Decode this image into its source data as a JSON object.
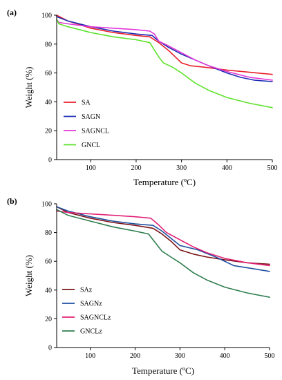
{
  "chart_data": [
    {
      "type": "line",
      "panel_label": "(a)",
      "xlabel": "Temperature (ºC)",
      "ylabel": "Weight (%)",
      "xlim": [
        25,
        500
      ],
      "ylim": [
        0,
        100
      ],
      "xticks": [
        100,
        200,
        300,
        400,
        500
      ],
      "yticks": [
        0,
        20,
        40,
        60,
        80,
        100
      ],
      "grid": false,
      "legend_position": "bottom-left",
      "series": [
        {
          "name": "SA",
          "color": "#e8202a",
          "x": [
            25,
            50,
            100,
            150,
            200,
            230,
            250,
            270,
            290,
            300,
            320,
            350,
            400,
            450,
            500
          ],
          "y": [
            100,
            96,
            91,
            88,
            86,
            85,
            81,
            76,
            70,
            67,
            65,
            64,
            62,
            60.5,
            59
          ]
        },
        {
          "name": "SAGN",
          "color": "#1d2bb5",
          "x": [
            25,
            50,
            100,
            150,
            200,
            235,
            250,
            270,
            300,
            330,
            360,
            400,
            430,
            460,
            500
          ],
          "y": [
            99,
            96,
            92,
            89,
            87,
            86,
            82,
            78,
            73,
            69,
            65,
            60,
            57,
            55,
            54
          ]
        },
        {
          "name": "SAGNCL",
          "color": "#e236d8",
          "x": [
            25,
            30,
            50,
            100,
            150,
            200,
            230,
            240,
            250,
            270,
            300,
            330,
            360,
            400,
            450,
            500
          ],
          "y": [
            97,
            95,
            94,
            92,
            91,
            90,
            89,
            87,
            82,
            79,
            74,
            69,
            65,
            61,
            57,
            55
          ]
        },
        {
          "name": "GNCL",
          "color": "#5de22b",
          "x": [
            25,
            30,
            50,
            100,
            150,
            200,
            230,
            240,
            250,
            260,
            280,
            300,
            330,
            360,
            400,
            450,
            500
          ],
          "y": [
            97,
            94,
            92,
            88,
            85,
            83,
            81,
            76,
            71,
            67,
            64,
            60,
            53,
            48,
            43,
            39,
            36
          ]
        }
      ]
    },
    {
      "type": "line",
      "panel_label": "(b)",
      "xlabel": "Temperature (ºC)",
      "ylabel": "Weight (%)",
      "xlim": [
        25,
        500
      ],
      "ylim": [
        0,
        100
      ],
      "xticks": [
        100,
        200,
        300,
        400,
        500
      ],
      "yticks": [
        0,
        20,
        40,
        60,
        80,
        100
      ],
      "grid": false,
      "legend_position": "bottom-left",
      "series": [
        {
          "name": "SAz",
          "color": "#7b1418",
          "x": [
            25,
            50,
            100,
            150,
            200,
            240,
            260,
            280,
            300,
            330,
            360,
            400,
            450,
            500
          ],
          "y": [
            98,
            94,
            90,
            87,
            85,
            83,
            79,
            74,
            68,
            65,
            63,
            61,
            59,
            58
          ]
        },
        {
          "name": "SAGNz",
          "color": "#1e4fa0",
          "x": [
            25,
            50,
            100,
            150,
            200,
            240,
            260,
            280,
            300,
            340,
            380,
            420,
            460,
            500
          ],
          "y": [
            98,
            95,
            91,
            88,
            86,
            85,
            81,
            76,
            71,
            68,
            63,
            57,
            55,
            53
          ]
        },
        {
          "name": "SAGNCLz",
          "color": "#e21f75",
          "x": [
            25,
            50,
            100,
            150,
            200,
            235,
            250,
            270,
            300,
            330,
            360,
            400,
            450,
            500
          ],
          "y": [
            95,
            94,
            93,
            92,
            91,
            90,
            86,
            80,
            75,
            70,
            66,
            62,
            59,
            57
          ]
        },
        {
          "name": "GNCLz",
          "color": "#2e7d4e",
          "x": [
            25,
            50,
            100,
            150,
            200,
            230,
            245,
            260,
            280,
            300,
            330,
            360,
            400,
            450,
            500
          ],
          "y": [
            96,
            92,
            88,
            84,
            81,
            79,
            73,
            67,
            63,
            59,
            52,
            47,
            42,
            38,
            35
          ]
        }
      ]
    }
  ]
}
